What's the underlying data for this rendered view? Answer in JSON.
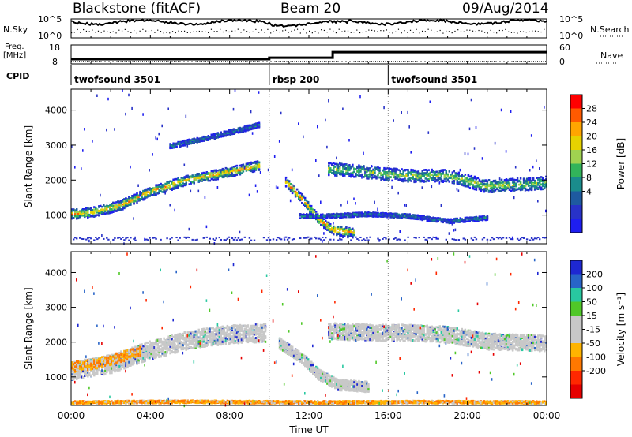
{
  "header": {
    "radar": "Blackstone (fitACF)",
    "beam": "Beam 20",
    "date": "09/Aug/2014"
  },
  "side_labels": {
    "nsky": "N.Sky",
    "freq_line1": "Freq.",
    "freq_line2": "[MHz]",
    "cpid": "CPID",
    "nsearch": "N.Search",
    "nave": "Nave"
  },
  "chart_data": [
    {
      "type": "line",
      "panel": "noise",
      "series": [
        {
          "name": "N.Sky",
          "style": "solid"
        },
        {
          "name": "N.Search",
          "style": "dotted"
        }
      ],
      "left_ticks": [
        "10^5",
        "10^0"
      ],
      "right_ticks": [
        "10^5",
        "10^0"
      ]
    },
    {
      "type": "line",
      "panel": "frequency",
      "left_ticks": [
        18,
        8
      ],
      "right_ticks": [
        60,
        0
      ],
      "freq_steps": [
        {
          "start": 0,
          "end": 10,
          "value": 10.5
        },
        {
          "start": 10,
          "end": 13.2,
          "value": 11.3
        },
        {
          "start": 13.2,
          "end": 16,
          "value": 14.2
        },
        {
          "start": 16,
          "end": 24,
          "value": 14.2
        }
      ],
      "nave_level": 8
    },
    {
      "type": "table",
      "panel": "cpid",
      "segments": [
        {
          "label": "twofsound 3501",
          "start": 0,
          "end": 10
        },
        {
          "label": "rbsp 200",
          "start": 10,
          "end": 16
        },
        {
          "label": "twofsound 3501",
          "start": 16,
          "end": 24
        }
      ]
    },
    {
      "type": "heatmap",
      "panel": "power",
      "ylabel": "Slant Range [km]",
      "yticks": [
        1000,
        2000,
        3000,
        4000
      ],
      "ylim": [
        180,
        4600
      ],
      "xlim": [
        0,
        24
      ],
      "colorbar_label": "Power [dB]",
      "colorbar_ticks": [
        "28",
        "24",
        "20",
        "16",
        "12",
        "8",
        "4"
      ],
      "colorbar_colors": [
        "#ff0000",
        "#ff5a00",
        "#ffa500",
        "#e6d200",
        "#a0d250",
        "#32b45a",
        "#1a8c8c",
        "#1e5aa0",
        "#2832c8",
        "#1e1ef0"
      ],
      "echo_bands": [
        {
          "points": [
            [
              0,
              1050
            ],
            [
              1,
              1100
            ],
            [
              2.5,
              1300
            ],
            [
              4,
              1700
            ],
            [
              6,
              2050
            ],
            [
              8,
              2250
            ],
            [
              9.5,
              2450
            ]
          ],
          "width": 280,
          "intensity": 0.75
        },
        {
          "points": [
            [
              10.8,
              2000
            ],
            [
              11.8,
              1400
            ],
            [
              12.5,
              900
            ],
            [
              13.2,
              600
            ],
            [
              14.3,
              520
            ]
          ],
          "width": 260,
          "intensity": 0.85
        },
        {
          "points": [
            [
              13,
              2350
            ],
            [
              15,
              2250
            ],
            [
              17,
              2150
            ],
            [
              19,
              2150
            ],
            [
              21,
              1850
            ],
            [
              24,
              1950
            ]
          ],
          "width": 360,
          "intensity": 0.55
        },
        {
          "points": [
            [
              5,
              3000
            ],
            [
              7,
              3250
            ],
            [
              9.5,
              3600
            ]
          ],
          "width": 140,
          "intensity": 0.3
        },
        {
          "points": [
            [
              11.5,
              1000
            ],
            [
              13,
              1000
            ],
            [
              15,
              1050
            ],
            [
              17,
              1000
            ],
            [
              19,
              850
            ],
            [
              21,
              950
            ]
          ],
          "width": 120,
          "intensity": 0.3
        }
      ]
    },
    {
      "type": "heatmap",
      "panel": "velocity",
      "ylabel": "Slant Range [km]",
      "xlabel": "Time UT",
      "yticks": [
        1000,
        2000,
        3000,
        4000
      ],
      "ylim": [
        180,
        4600
      ],
      "xlim": [
        0,
        24
      ],
      "xticks": [
        "00:00",
        "04:00",
        "08:00",
        "12:00",
        "16:00",
        "20:00",
        "00:00"
      ],
      "colorbar_label": "Velocity [m s⁻¹]",
      "colorbar_ticks": [
        "200",
        "100",
        "50",
        "15",
        "-15",
        "-50",
        "-100",
        "-200"
      ],
      "colorbar_colors": [
        "#1e28d2",
        "#2864c8",
        "#28c8a0",
        "#50c828",
        "#c8c8c8",
        "#c8c8c8",
        "#ffb400",
        "#ff7800",
        "#ff2800",
        "#e60000"
      ],
      "echo_bands": [
        {
          "points": [
            [
              0,
              1200
            ],
            [
              2,
              1400
            ],
            [
              4,
              1800
            ],
            [
              6,
              2100
            ],
            [
              8,
              2250
            ],
            [
              9.8,
              2300
            ]
          ],
          "width": 520,
          "kind": "gray"
        },
        {
          "points": [
            [
              0,
              1300
            ],
            [
              2,
              1500
            ],
            [
              3.5,
              1800
            ]
          ],
          "width": 300,
          "kind": "orange"
        },
        {
          "points": [
            [
              10.5,
              2000
            ],
            [
              11.8,
              1500
            ],
            [
              12.5,
              1100
            ],
            [
              13.5,
              800
            ],
            [
              15,
              750
            ]
          ],
          "width": 300,
          "kind": "gray"
        },
        {
          "points": [
            [
              13,
              2350
            ],
            [
              15,
              2300
            ],
            [
              17,
              2300
            ],
            [
              19,
              2250
            ],
            [
              21,
              2050
            ],
            [
              24,
              2000
            ]
          ],
          "width": 460,
          "kind": "gray"
        },
        {
          "points": [
            [
              0,
              300
            ],
            [
              6,
              320
            ],
            [
              12,
              300
            ],
            [
              18,
              310
            ],
            [
              24,
              300
            ]
          ],
          "width": 70,
          "kind": "orange"
        }
      ]
    }
  ]
}
